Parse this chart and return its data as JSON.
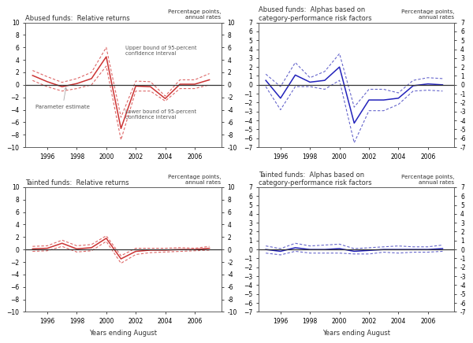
{
  "years": [
    1995,
    1996,
    1997,
    1998,
    1999,
    2000,
    2001,
    2002,
    2003,
    2004,
    2005,
    2006,
    2007
  ],
  "abused_rel_center": [
    1.5,
    0.5,
    -0.3,
    0.2,
    1.0,
    4.5,
    -7.0,
    -0.2,
    -0.3,
    -2.2,
    0.1,
    0.1,
    0.8
  ],
  "abused_rel_upper": [
    2.3,
    1.3,
    0.4,
    1.0,
    2.0,
    6.0,
    -5.2,
    0.6,
    0.5,
    -1.8,
    0.8,
    0.8,
    1.8
  ],
  "abused_rel_lower": [
    0.7,
    -0.3,
    -1.0,
    -0.6,
    0.0,
    3.0,
    -8.8,
    -1.0,
    -1.0,
    -2.6,
    -0.6,
    -0.6,
    0.0
  ],
  "abused_alpha_center": [
    0.5,
    -1.5,
    1.1,
    0.3,
    0.5,
    2.0,
    -4.3,
    -1.7,
    -1.7,
    -1.5,
    -0.1,
    0.1,
    0.0
  ],
  "abused_alpha_upper": [
    1.2,
    -0.2,
    2.5,
    0.8,
    1.5,
    3.5,
    -2.5,
    -0.5,
    -0.5,
    -0.9,
    0.5,
    0.8,
    0.7
  ],
  "abused_alpha_lower": [
    -0.2,
    -2.8,
    -0.2,
    -0.2,
    -0.5,
    0.5,
    -6.5,
    -2.9,
    -2.9,
    -2.2,
    -0.7,
    -0.6,
    -0.7
  ],
  "tainted_rel_center": [
    0.1,
    0.2,
    1.0,
    0.1,
    0.3,
    1.8,
    -1.5,
    -0.3,
    -0.1,
    -0.1,
    0.0,
    0.0,
    0.2
  ],
  "tainted_rel_upper": [
    0.5,
    0.6,
    1.5,
    0.6,
    0.8,
    2.2,
    -1.0,
    0.2,
    0.2,
    0.2,
    0.3,
    0.2,
    0.5
  ],
  "tainted_rel_lower": [
    -0.3,
    -0.2,
    0.5,
    -0.4,
    -0.2,
    1.3,
    -2.2,
    -0.8,
    -0.5,
    -0.4,
    -0.3,
    -0.2,
    -0.1
  ],
  "tainted_alpha_center": [
    0.0,
    -0.2,
    0.2,
    0.0,
    0.0,
    0.1,
    -0.2,
    -0.1,
    0.0,
    0.0,
    0.0,
    0.0,
    0.1
  ],
  "tainted_alpha_upper": [
    0.4,
    0.1,
    0.7,
    0.4,
    0.5,
    0.6,
    0.1,
    0.2,
    0.3,
    0.4,
    0.3,
    0.3,
    0.5
  ],
  "tainted_alpha_lower": [
    -0.4,
    -0.6,
    -0.2,
    -0.4,
    -0.4,
    -0.4,
    -0.5,
    -0.5,
    -0.3,
    -0.4,
    -0.3,
    -0.3,
    -0.2
  ],
  "red_color": "#cc3333",
  "red_dash_color": "#dd6666",
  "blue_color": "#2222bb",
  "blue_dash_color": "#6666cc",
  "zero_line_color": "#333333",
  "bg_color": "#ffffff",
  "title_abused_rel": "Abused funds:  Relative returns",
  "title_abused_alpha": "Abused funds:  Alphas based on\ncategory-performance risk factors",
  "title_tainted_rel": "Tainted funds:  Relative returns",
  "title_tainted_alpha": "Tainted funds:  Alphas based on\ncategory-performance risk factors",
  "corner_label": "Percentage points,\nannual rates",
  "xlabel": "Years ending August",
  "ylim_rel": [
    -10,
    10
  ],
  "yticks_rel": [
    -10,
    -8,
    -6,
    -4,
    -2,
    0,
    2,
    4,
    6,
    8,
    10
  ],
  "ylim_alpha": [
    -7,
    7
  ],
  "yticks_alpha": [
    -7,
    -6,
    -5,
    -4,
    -3,
    -2,
    -1,
    0,
    1,
    2,
    3,
    4,
    5,
    6,
    7
  ],
  "annotation_param": "Parameter estimate",
  "annotation_upper": "Upper bound of 95-percent\nconfidence interval",
  "annotation_lower": "Lower bound of 95-percent\nconfidence interval"
}
